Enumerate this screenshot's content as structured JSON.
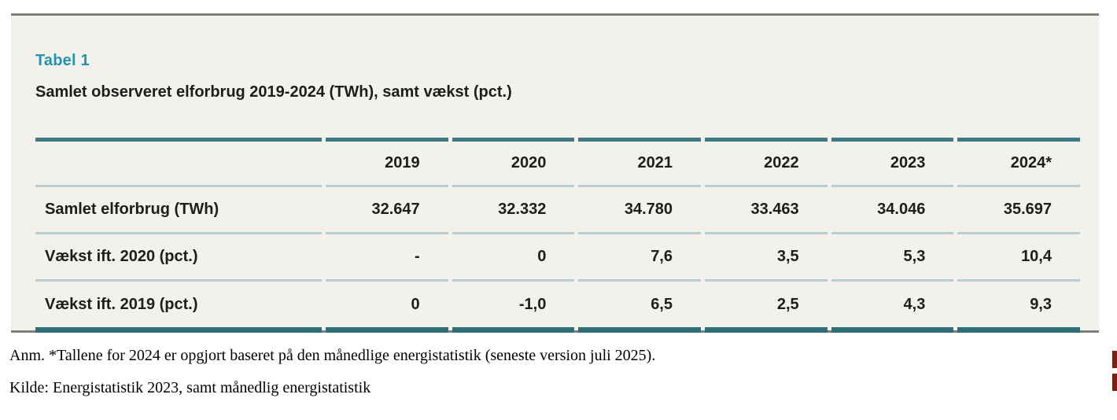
{
  "table": {
    "title": "Tabel 1",
    "subtitle": "Samlet observeret elforbrug 2019-2024 (TWh), samt vækst (pct.)",
    "columns": [
      "",
      "2019",
      "2020",
      "2021",
      "2022",
      "2023",
      "2024*"
    ],
    "rows": [
      {
        "label": "Samlet elforbrug (TWh)",
        "values": [
          "32.647",
          "32.332",
          "34.780",
          "33.463",
          "34.046",
          "35.697"
        ]
      },
      {
        "label": "Vækst ift. 2020 (pct.)",
        "values": [
          "-",
          "0",
          "7,6",
          "3,5",
          "5,3",
          "10,4"
        ]
      },
      {
        "label": "Vækst ift. 2019 (pct.)",
        "values": [
          "0",
          "-1,0",
          "6,5",
          "2,5",
          "4,3",
          "9,3"
        ]
      }
    ]
  },
  "footnotes": {
    "note": "Anm. *Tallene for 2024 er opgjort baseret på den månedlige energistatistik (seneste version juli 2025).",
    "source": "Kilde: Energistatistik 2023, samt månedlig energistatistik"
  },
  "colors": {
    "panel_background": "#f2f1ec",
    "panel_border_gray": "#7d7d7d",
    "table_border_dark_teal": "#3d7a81",
    "table_separator_light_teal": "#b7cdd0",
    "title_teal": "#2095ad",
    "text_black": "#1d1d1b",
    "margin_mark_red": "#7c2215"
  }
}
